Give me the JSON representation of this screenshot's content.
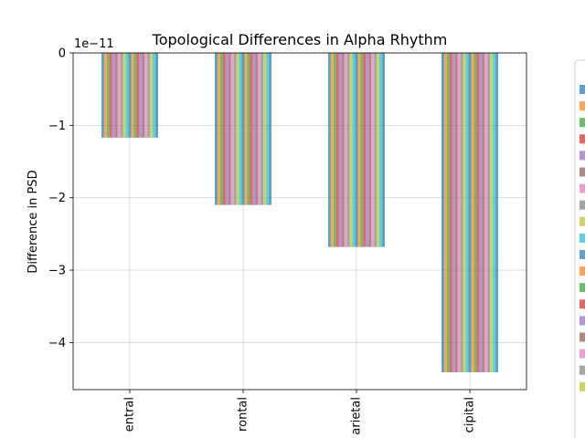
{
  "chart_data": {
    "type": "bar",
    "title": "Topological Differences in Alpha Rhythm",
    "xlabel": "",
    "ylabel": "Difference in PSD",
    "offset_text": "1e−11",
    "y_scale_exponent": -11,
    "categories": [
      "Central",
      "Frontal",
      "Parietal",
      "Occipital"
    ],
    "category_labels_visible": [
      "entral",
      "rontal",
      "arietal",
      "cipital"
    ],
    "values": [
      -1.17e-11,
      -2.1e-11,
      -2.68e-11,
      -4.41e-11
    ],
    "ylim": [
      -4.65e-11,
      0
    ],
    "yticks": [
      0,
      -1e-11,
      -2e-11,
      -3e-11,
      -4e-11
    ],
    "ytick_labels": [
      "0",
      "−1",
      "−2",
      "−3",
      "−4"
    ],
    "grid": true,
    "legend_placement": "right",
    "series_count": 21,
    "bar_alpha": 0.7,
    "series_colors": [
      "#1f77b4",
      "#ff7f0e",
      "#2ca02c",
      "#d62728",
      "#9467bd",
      "#8c564b",
      "#e377c2",
      "#7f7f7f",
      "#bcbd22",
      "#17becf",
      "#1f77b4",
      "#ff7f0e",
      "#2ca02c",
      "#d62728",
      "#9467bd",
      "#8c564b",
      "#e377c2",
      "#7f7f7f",
      "#bcbd22",
      "#17becf",
      "#1f77b4"
    ]
  }
}
